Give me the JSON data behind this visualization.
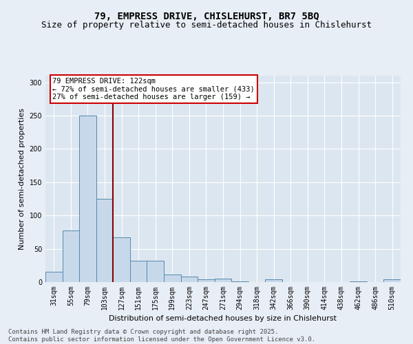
{
  "title_line1": "79, EMPRESS DRIVE, CHISLEHURST, BR7 5BQ",
  "title_line2": "Size of property relative to semi-detached houses in Chislehurst",
  "xlabel": "Distribution of semi-detached houses by size in Chislehurst",
  "ylabel": "Number of semi-detached properties",
  "annotation_title": "79 EMPRESS DRIVE: 122sqm",
  "annotation_line2": "← 72% of semi-detached houses are smaller (433)",
  "annotation_line3": "27% of semi-detached houses are larger (159) →",
  "footer_line1": "Contains HM Land Registry data © Crown copyright and database right 2025.",
  "footer_line2": "Contains public sector information licensed under the Open Government Licence v3.0.",
  "bin_labels": [
    "31sqm",
    "55sqm",
    "79sqm",
    "103sqm",
    "127sqm",
    "151sqm",
    "175sqm",
    "199sqm",
    "223sqm",
    "247sqm",
    "271sqm",
    "294sqm",
    "318sqm",
    "342sqm",
    "366sqm",
    "390sqm",
    "414sqm",
    "438sqm",
    "462sqm",
    "486sqm",
    "510sqm"
  ],
  "bar_values": [
    15,
    78,
    250,
    125,
    67,
    32,
    32,
    11,
    8,
    4,
    5,
    1,
    0,
    4,
    0,
    0,
    0,
    0,
    1,
    0,
    4
  ],
  "bar_color": "#c8d8eb",
  "bar_edge_color": "#5588aa",
  "vline_x": 3.5,
  "vline_color": "#880000",
  "annotation_box_color": "#cc0000",
  "background_color": "#e8eef5",
  "plot_bg_color": "#dce6f0",
  "ylim": [
    0,
    310
  ],
  "yticks": [
    0,
    50,
    100,
    150,
    200,
    250,
    300
  ],
  "title_fontsize": 10,
  "subtitle_fontsize": 9,
  "axis_label_fontsize": 8,
  "tick_fontsize": 7,
  "footer_fontsize": 6.5,
  "annotation_fontsize": 7.5
}
